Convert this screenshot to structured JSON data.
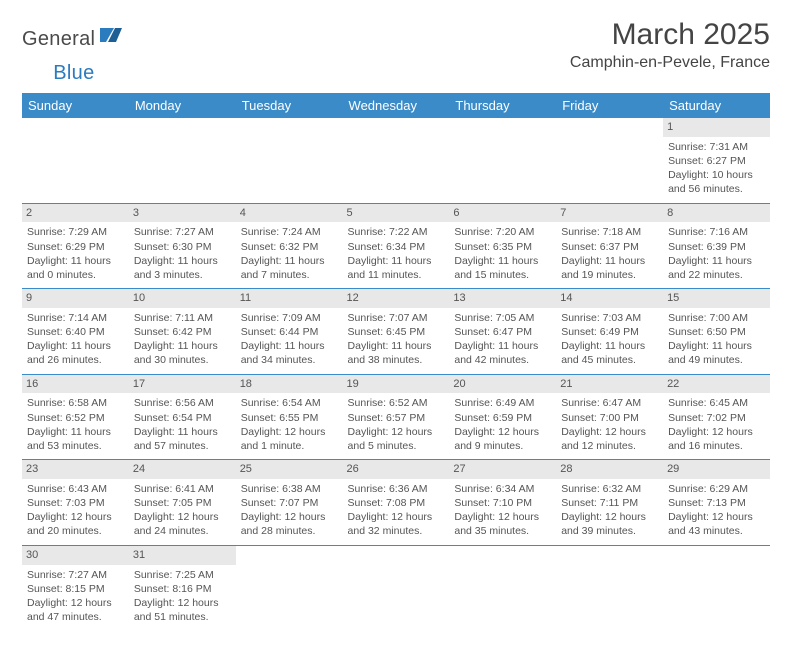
{
  "brand": {
    "name_a": "General",
    "name_b": "Blue"
  },
  "title": "March 2025",
  "location": "Camphin-en-Pevele, France",
  "colors": {
    "header_bg": "#3b8bc9",
    "header_fg": "#ffffff",
    "daynum_bg": "#e8e8e8",
    "border": "#3b8bc9"
  },
  "day_headers": [
    "Sunday",
    "Monday",
    "Tuesday",
    "Wednesday",
    "Thursday",
    "Friday",
    "Saturday"
  ],
  "weeks": [
    [
      null,
      null,
      null,
      null,
      null,
      null,
      {
        "n": "1",
        "sr": "Sunrise: 7:31 AM",
        "ss": "Sunset: 6:27 PM",
        "dl1": "Daylight: 10 hours",
        "dl2": "and 56 minutes."
      }
    ],
    [
      {
        "n": "2",
        "sr": "Sunrise: 7:29 AM",
        "ss": "Sunset: 6:29 PM",
        "dl1": "Daylight: 11 hours",
        "dl2": "and 0 minutes."
      },
      {
        "n": "3",
        "sr": "Sunrise: 7:27 AM",
        "ss": "Sunset: 6:30 PM",
        "dl1": "Daylight: 11 hours",
        "dl2": "and 3 minutes."
      },
      {
        "n": "4",
        "sr": "Sunrise: 7:24 AM",
        "ss": "Sunset: 6:32 PM",
        "dl1": "Daylight: 11 hours",
        "dl2": "and 7 minutes."
      },
      {
        "n": "5",
        "sr": "Sunrise: 7:22 AM",
        "ss": "Sunset: 6:34 PM",
        "dl1": "Daylight: 11 hours",
        "dl2": "and 11 minutes."
      },
      {
        "n": "6",
        "sr": "Sunrise: 7:20 AM",
        "ss": "Sunset: 6:35 PM",
        "dl1": "Daylight: 11 hours",
        "dl2": "and 15 minutes."
      },
      {
        "n": "7",
        "sr": "Sunrise: 7:18 AM",
        "ss": "Sunset: 6:37 PM",
        "dl1": "Daylight: 11 hours",
        "dl2": "and 19 minutes."
      },
      {
        "n": "8",
        "sr": "Sunrise: 7:16 AM",
        "ss": "Sunset: 6:39 PM",
        "dl1": "Daylight: 11 hours",
        "dl2": "and 22 minutes."
      }
    ],
    [
      {
        "n": "9",
        "sr": "Sunrise: 7:14 AM",
        "ss": "Sunset: 6:40 PM",
        "dl1": "Daylight: 11 hours",
        "dl2": "and 26 minutes."
      },
      {
        "n": "10",
        "sr": "Sunrise: 7:11 AM",
        "ss": "Sunset: 6:42 PM",
        "dl1": "Daylight: 11 hours",
        "dl2": "and 30 minutes."
      },
      {
        "n": "11",
        "sr": "Sunrise: 7:09 AM",
        "ss": "Sunset: 6:44 PM",
        "dl1": "Daylight: 11 hours",
        "dl2": "and 34 minutes."
      },
      {
        "n": "12",
        "sr": "Sunrise: 7:07 AM",
        "ss": "Sunset: 6:45 PM",
        "dl1": "Daylight: 11 hours",
        "dl2": "and 38 minutes."
      },
      {
        "n": "13",
        "sr": "Sunrise: 7:05 AM",
        "ss": "Sunset: 6:47 PM",
        "dl1": "Daylight: 11 hours",
        "dl2": "and 42 minutes."
      },
      {
        "n": "14",
        "sr": "Sunrise: 7:03 AM",
        "ss": "Sunset: 6:49 PM",
        "dl1": "Daylight: 11 hours",
        "dl2": "and 45 minutes."
      },
      {
        "n": "15",
        "sr": "Sunrise: 7:00 AM",
        "ss": "Sunset: 6:50 PM",
        "dl1": "Daylight: 11 hours",
        "dl2": "and 49 minutes."
      }
    ],
    [
      {
        "n": "16",
        "sr": "Sunrise: 6:58 AM",
        "ss": "Sunset: 6:52 PM",
        "dl1": "Daylight: 11 hours",
        "dl2": "and 53 minutes."
      },
      {
        "n": "17",
        "sr": "Sunrise: 6:56 AM",
        "ss": "Sunset: 6:54 PM",
        "dl1": "Daylight: 11 hours",
        "dl2": "and 57 minutes."
      },
      {
        "n": "18",
        "sr": "Sunrise: 6:54 AM",
        "ss": "Sunset: 6:55 PM",
        "dl1": "Daylight: 12 hours",
        "dl2": "and 1 minute."
      },
      {
        "n": "19",
        "sr": "Sunrise: 6:52 AM",
        "ss": "Sunset: 6:57 PM",
        "dl1": "Daylight: 12 hours",
        "dl2": "and 5 minutes."
      },
      {
        "n": "20",
        "sr": "Sunrise: 6:49 AM",
        "ss": "Sunset: 6:59 PM",
        "dl1": "Daylight: 12 hours",
        "dl2": "and 9 minutes."
      },
      {
        "n": "21",
        "sr": "Sunrise: 6:47 AM",
        "ss": "Sunset: 7:00 PM",
        "dl1": "Daylight: 12 hours",
        "dl2": "and 12 minutes."
      },
      {
        "n": "22",
        "sr": "Sunrise: 6:45 AM",
        "ss": "Sunset: 7:02 PM",
        "dl1": "Daylight: 12 hours",
        "dl2": "and 16 minutes."
      }
    ],
    [
      {
        "n": "23",
        "sr": "Sunrise: 6:43 AM",
        "ss": "Sunset: 7:03 PM",
        "dl1": "Daylight: 12 hours",
        "dl2": "and 20 minutes."
      },
      {
        "n": "24",
        "sr": "Sunrise: 6:41 AM",
        "ss": "Sunset: 7:05 PM",
        "dl1": "Daylight: 12 hours",
        "dl2": "and 24 minutes."
      },
      {
        "n": "25",
        "sr": "Sunrise: 6:38 AM",
        "ss": "Sunset: 7:07 PM",
        "dl1": "Daylight: 12 hours",
        "dl2": "and 28 minutes."
      },
      {
        "n": "26",
        "sr": "Sunrise: 6:36 AM",
        "ss": "Sunset: 7:08 PM",
        "dl1": "Daylight: 12 hours",
        "dl2": "and 32 minutes."
      },
      {
        "n": "27",
        "sr": "Sunrise: 6:34 AM",
        "ss": "Sunset: 7:10 PM",
        "dl1": "Daylight: 12 hours",
        "dl2": "and 35 minutes."
      },
      {
        "n": "28",
        "sr": "Sunrise: 6:32 AM",
        "ss": "Sunset: 7:11 PM",
        "dl1": "Daylight: 12 hours",
        "dl2": "and 39 minutes."
      },
      {
        "n": "29",
        "sr": "Sunrise: 6:29 AM",
        "ss": "Sunset: 7:13 PM",
        "dl1": "Daylight: 12 hours",
        "dl2": "and 43 minutes."
      }
    ],
    [
      {
        "n": "30",
        "sr": "Sunrise: 7:27 AM",
        "ss": "Sunset: 8:15 PM",
        "dl1": "Daylight: 12 hours",
        "dl2": "and 47 minutes."
      },
      {
        "n": "31",
        "sr": "Sunrise: 7:25 AM",
        "ss": "Sunset: 8:16 PM",
        "dl1": "Daylight: 12 hours",
        "dl2": "and 51 minutes."
      },
      null,
      null,
      null,
      null,
      null
    ]
  ]
}
